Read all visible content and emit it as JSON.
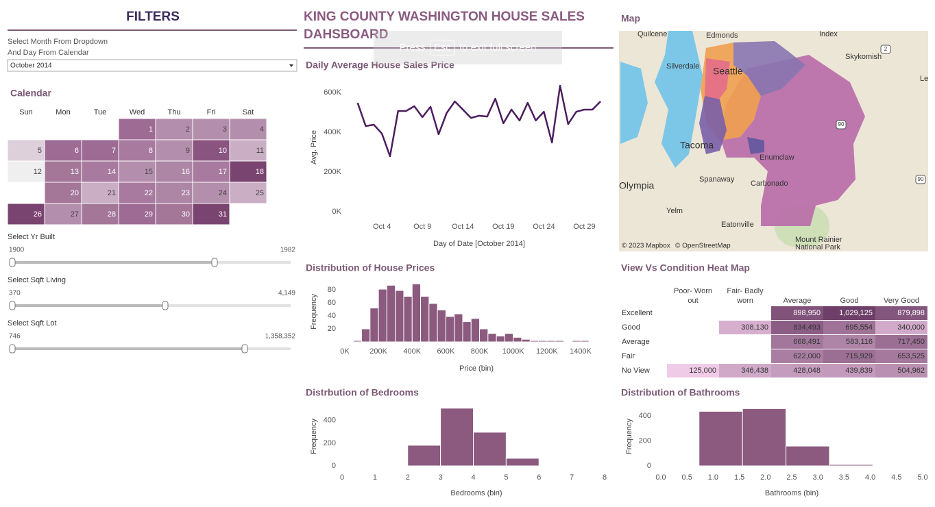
{
  "header": {
    "title": "KING COUNTY WASHINGTON HOUSE SALES DAHSBOARD",
    "notice": [
      "Press",
      "Esc",
      "to exit full screen"
    ]
  },
  "filters": {
    "title": "FILTERS",
    "month_prompt": [
      "Select Month From Dropdown",
      "And Day From Calendar"
    ],
    "month": "October 2014",
    "sliders": [
      {
        "label": "Select Yr Built",
        "min": "1900",
        "max": "1982"
      },
      {
        "label": "Select Sqft Living",
        "min": "370",
        "max": "4,149"
      },
      {
        "label": "Select Sqft Lot",
        "min": "746",
        "max": "1,358,352"
      }
    ]
  },
  "calendar": {
    "title": "Calendar",
    "weekdays": [
      "Sun",
      "Mon",
      "Tue",
      "Wed",
      "Thu",
      "Fri",
      "Sat"
    ],
    "days": [
      {
        "day": 1,
        "color": "#9e6b94"
      },
      {
        "day": 2,
        "color": "#b48fad"
      },
      {
        "day": 3,
        "color": "#b48fad"
      },
      {
        "day": 4,
        "color": "#b48fad"
      },
      {
        "day": 5,
        "color": "#ddd0da"
      },
      {
        "day": 6,
        "color": "#9e6b94"
      },
      {
        "day": 7,
        "color": "#9e6b94"
      },
      {
        "day": 8,
        "color": "#a87a9f"
      },
      {
        "day": 9,
        "color": "#b48fad"
      },
      {
        "day": 10,
        "color": "#8a5480"
      },
      {
        "day": 11,
        "color": "#c9aec4"
      },
      {
        "day": 12,
        "color": "#efefef"
      },
      {
        "day": 13,
        "color": "#a47799"
      },
      {
        "day": 14,
        "color": "#a87a9f"
      },
      {
        "day": 15,
        "color": "#b48fad"
      },
      {
        "day": 16,
        "color": "#ad86a5"
      },
      {
        "day": 17,
        "color": "#a87a9f"
      },
      {
        "day": 18,
        "color": "#7a4470"
      },
      {
        "day": 20,
        "color": "#a47799"
      },
      {
        "day": 21,
        "color": "#c9aec4"
      },
      {
        "day": 22,
        "color": "#a87a9f"
      },
      {
        "day": 23,
        "color": "#ad86a5"
      },
      {
        "day": 24,
        "color": "#b48fad"
      },
      {
        "day": 25,
        "color": "#c9aec4"
      },
      {
        "day": 26,
        "color": "#7a4470"
      },
      {
        "day": 27,
        "color": "#b48fad"
      },
      {
        "day": 28,
        "color": "#a47799"
      },
      {
        "day": 29,
        "color": "#9e6b94"
      },
      {
        "day": 30,
        "color": "#a47799"
      },
      {
        "day": 31,
        "color": "#7a4470"
      }
    ]
  },
  "map": {
    "title": "Map",
    "places": [
      "Quilcene",
      "Edmonds",
      "Index",
      "Skykomish",
      "Silverdale",
      "Seattle",
      "Le",
      "Tacoma",
      "Enumclaw",
      "Spanaway",
      "Carbonado",
      "Olympia",
      "Yelm",
      "Eatonville",
      "Mount Rainier",
      "National Park"
    ],
    "routes": [
      "2",
      "90",
      "90"
    ],
    "attribution": [
      "© 2023 Mapbox",
      "© OpenStreetMap"
    ]
  },
  "heatmap": {
    "title": "View Vs Condition Heat Map",
    "columns": [
      "Poor- Worn out",
      "Fair- Badly worn",
      "Average",
      "Good",
      "Very Good"
    ],
    "rows": [
      {
        "label": "Excellent",
        "values": [
          null,
          null,
          898950,
          1029125,
          879898
        ],
        "value_labels": [
          null,
          null,
          "898,950",
          "1,029,125",
          "879,898"
        ]
      },
      {
        "label": "Good",
        "values": [
          null,
          308130,
          834493,
          695554,
          340000
        ],
        "value_labels": [
          null,
          "308,130",
          "834,493",
          "695,554",
          "340,000"
        ]
      },
      {
        "label": "Average",
        "values": [
          null,
          null,
          668491,
          583116,
          717450
        ],
        "value_labels": [
          null,
          null,
          "668,491",
          "583,116",
          "717,450"
        ]
      },
      {
        "label": "Fair",
        "values": [
          null,
          null,
          622000,
          715929,
          653525
        ],
        "value_labels": [
          null,
          null,
          "622,000",
          "715,929",
          "653,525"
        ]
      },
      {
        "label": "No View",
        "values": [
          125000,
          346438,
          428048,
          439839,
          504962
        ],
        "value_labels": [
          "125,000",
          "346,438",
          "428,048",
          "439,839",
          "504,962"
        ]
      }
    ]
  },
  "chart_data": [
    {
      "type": "line",
      "title": "Daily Average House Sales Price",
      "x_label": "Day of Date [October 2014]",
      "y_label": "Avg. Price",
      "color": "#4b1d5e",
      "x": [
        1,
        2,
        3,
        4,
        5,
        6,
        7,
        8,
        9,
        10,
        11,
        12,
        13,
        14,
        15,
        16,
        17,
        18,
        19,
        20,
        21,
        22,
        23,
        24,
        25,
        26,
        27,
        28,
        29,
        30,
        31
      ],
      "values": [
        548000,
        431000,
        438000,
        393000,
        279000,
        507000,
        507000,
        531000,
        476000,
        528000,
        390000,
        497000,
        555000,
        514000,
        472000,
        483000,
        479000,
        569000,
        445000,
        514000,
        459000,
        548000,
        459000,
        503000,
        348000,
        634000,
        441000,
        503000,
        514000,
        514000,
        555000
      ],
      "xlim": [
        -0.5,
        31.5
      ],
      "xticks": [
        {
          "value": 4,
          "label": "Oct 4"
        },
        {
          "value": 9,
          "label": "Oct 9"
        },
        {
          "value": 14,
          "label": "Oct 14"
        },
        {
          "value": 19,
          "label": "Oct 19"
        },
        {
          "value": 24,
          "label": "Oct 24"
        },
        {
          "value": 29,
          "label": "Oct 29"
        }
      ],
      "ylim": [
        0,
        650000
      ],
      "yticks": [
        {
          "value": 0,
          "label": "0K"
        },
        {
          "value": 200000,
          "label": "200K"
        },
        {
          "value": 400000,
          "label": "400K"
        },
        {
          "value": 600000,
          "label": "600K"
        }
      ]
    },
    {
      "type": "histogram",
      "title": "Distribution of House Prices",
      "x_label": "Price (bin)",
      "y_label": "Frequency",
      "color": "#8b5a7e",
      "bins": [
        50000,
        100000,
        150000,
        200000,
        250000,
        300000,
        350000,
        400000,
        450000,
        500000,
        550000,
        600000,
        650000,
        700000,
        750000,
        800000,
        850000,
        900000,
        950000,
        1000000,
        1050000,
        1100000,
        1150000,
        1200000,
        1250000,
        1300000,
        1350000,
        1400000,
        1450000
      ],
      "values": [
        2,
        20,
        52,
        81,
        87,
        79,
        70,
        89,
        70,
        59,
        49,
        39,
        43,
        31,
        36,
        20,
        13,
        9,
        13,
        7,
        4,
        2,
        2,
        2,
        2,
        1,
        2,
        2
      ],
      "xlim": [
        -30000,
        1540000
      ],
      "xticks": [
        {
          "value": 0,
          "label": "0K"
        },
        {
          "value": 200000,
          "label": "200K"
        },
        {
          "value": 400000,
          "label": "400K"
        },
        {
          "value": 600000,
          "label": "600K"
        },
        {
          "value": 800000,
          "label": "800K"
        },
        {
          "value": 1000000,
          "label": "1000K"
        },
        {
          "value": 1200000,
          "label": "1200K"
        },
        {
          "value": 1400000,
          "label": "1400K"
        }
      ],
      "ylim": [
        0,
        100
      ],
      "yticks": [
        20,
        40,
        60,
        80
      ]
    },
    {
      "type": "histogram",
      "title": "Distrbution of Bedrooms",
      "x_label": "Bedrooms (bin)",
      "y_label": "Frequency",
      "color": "#8b5a7e",
      "bins": [
        1,
        2,
        3,
        4,
        5,
        6
      ],
      "values": [
        6,
        182,
        509,
        297,
        67
      ],
      "xlim": [
        0,
        8
      ],
      "xticks": [
        0,
        1,
        2,
        3,
        4,
        5,
        6,
        7,
        8
      ],
      "ylim": [
        0,
        550
      ],
      "yticks": [
        0,
        200,
        400
      ]
    },
    {
      "type": "histogram",
      "title": "Distribution of Bathrooms",
      "x_label": "Bathrooms (bin)",
      "y_label": "Frequency",
      "color": "#8b5a7e",
      "bins": [
        -0.1,
        0.73,
        1.56,
        2.39,
        3.22,
        4.05
      ],
      "values": [
        3,
        438,
        460,
        159,
        11
      ],
      "xlim": [
        0,
        5
      ],
      "xticks": [
        {
          "value": 0,
          "label": "0.0"
        },
        0.5,
        {
          "value": 1,
          "label": "1.0"
        },
        1.5,
        {
          "value": 2,
          "label": "2.0"
        },
        2.5,
        {
          "value": 3,
          "label": "3.0"
        },
        3.5,
        {
          "value": 4,
          "label": "4.0"
        },
        4.5,
        {
          "value": 5,
          "label": "5.0"
        }
      ],
      "ylim": [
        0,
        550
      ],
      "yticks": [
        0,
        200,
        400
      ]
    }
  ]
}
